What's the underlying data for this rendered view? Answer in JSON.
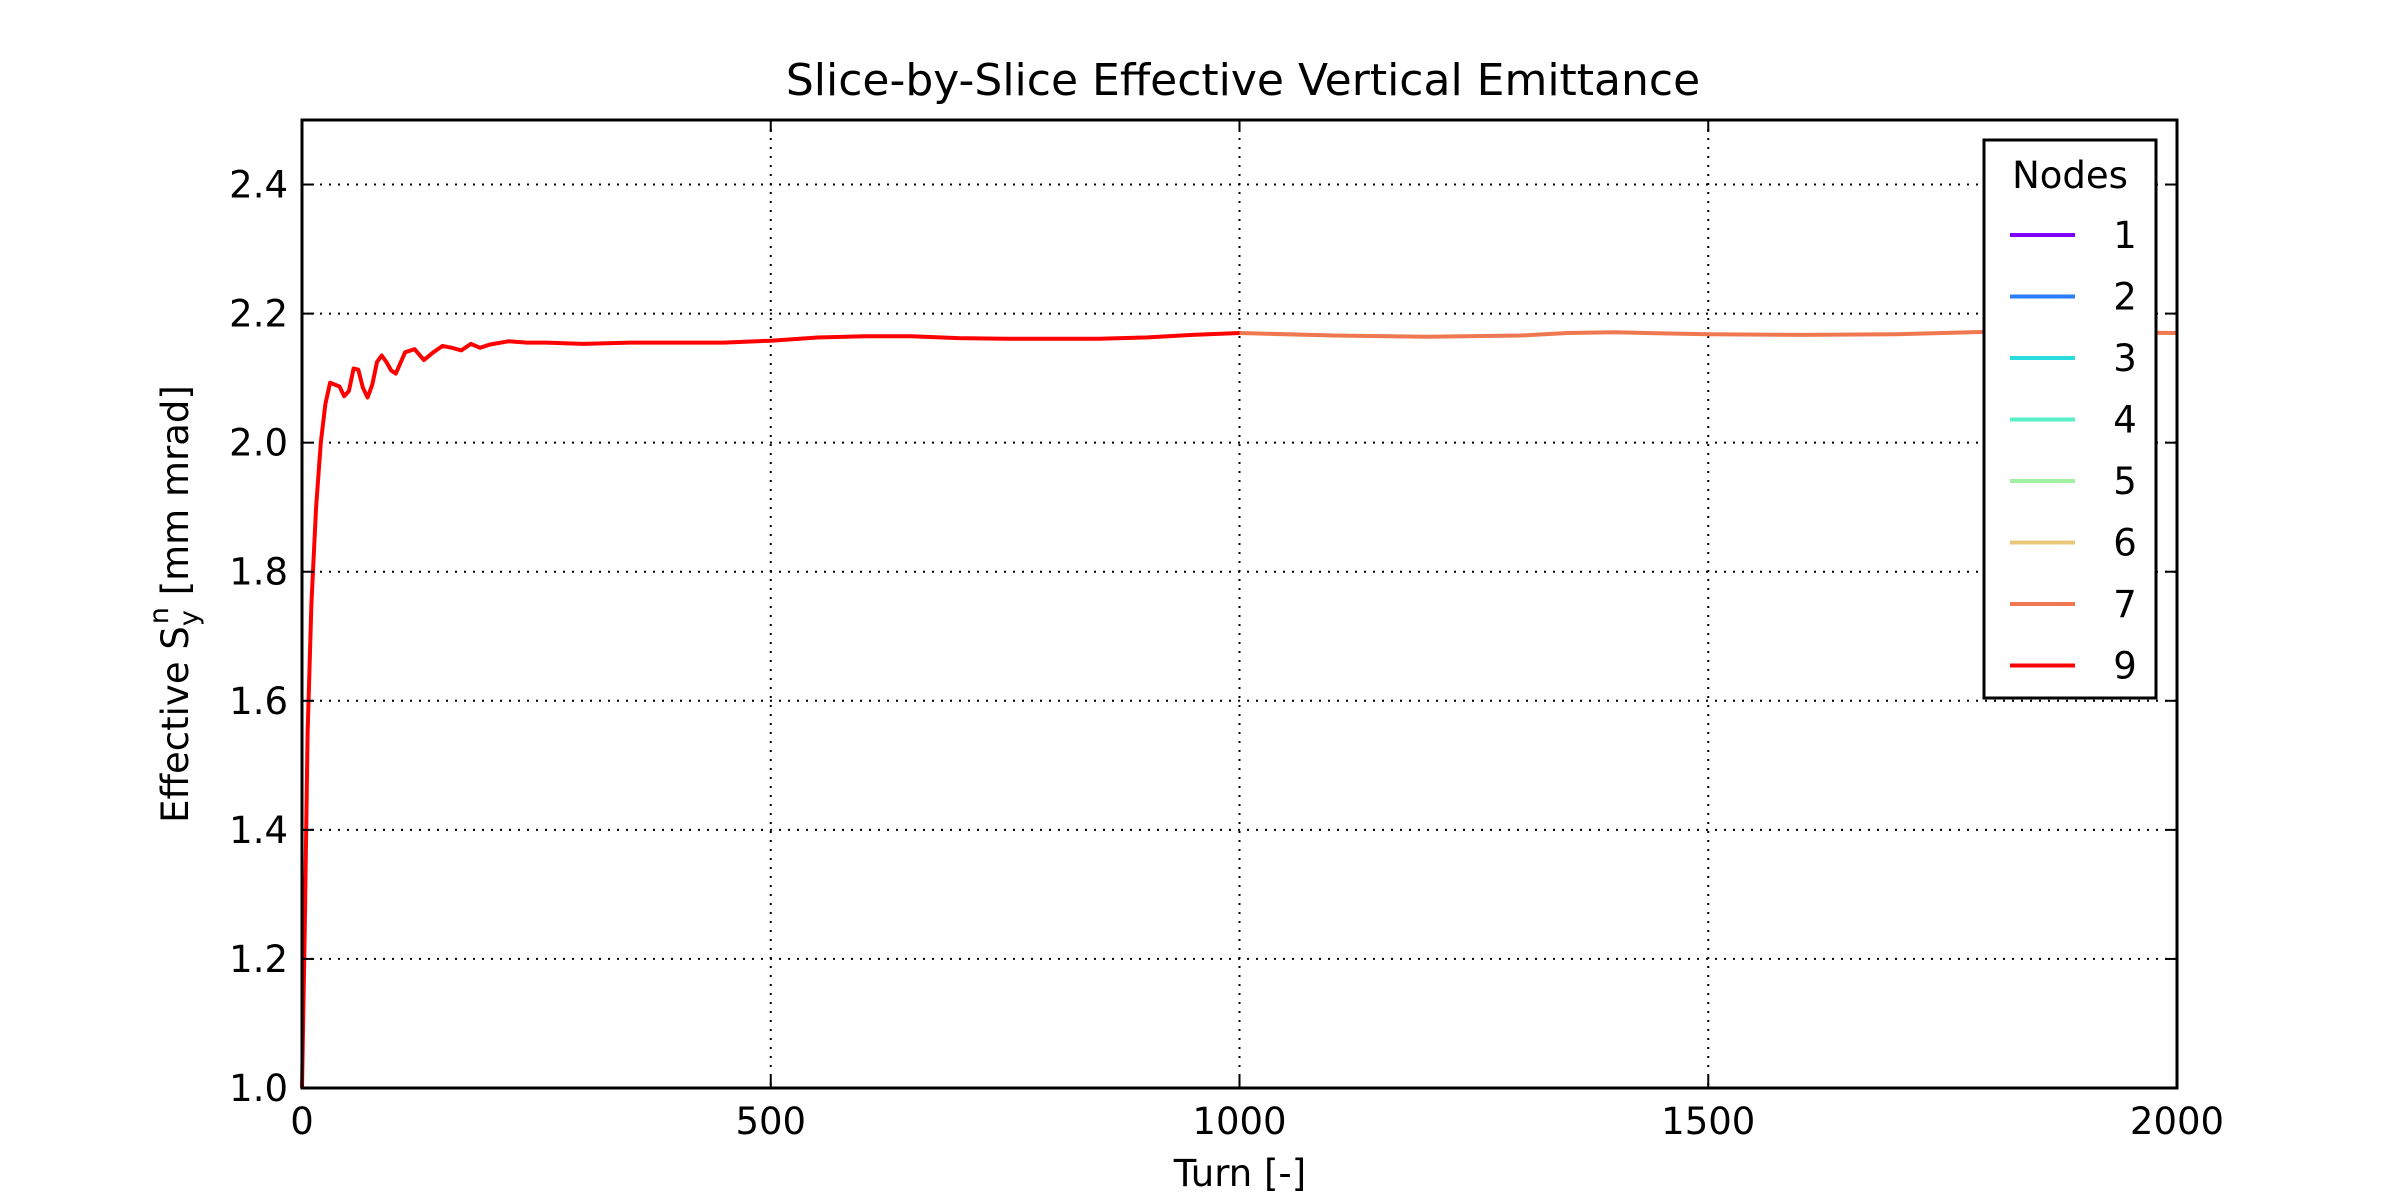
{
  "chart_data": {
    "type": "line",
    "title": "Slice-by-Slice Effective Vertical Emittance",
    "xlabel": "Turn [-]",
    "ylabel": {
      "prefix": "Effective S",
      "subscript": "y",
      "superscript": "n",
      "suffix": "  [mm mrad]"
    },
    "xlim": [
      0,
      2000
    ],
    "ylim": [
      1.0,
      2.5
    ],
    "xticks": [
      0,
      500,
      1000,
      1500,
      2000
    ],
    "yticks": [
      1.0,
      1.2,
      1.4,
      1.6,
      1.8,
      2.0,
      2.2,
      2.4
    ],
    "xtick_labels": [
      "0",
      "500",
      "1000",
      "1500",
      "2000"
    ],
    "ytick_labels": [
      "1.0",
      "1.2",
      "1.4",
      "1.6",
      "1.8",
      "2.0",
      "2.2",
      "2.4"
    ],
    "grid": true,
    "legend": {
      "title": "Nodes",
      "placement": "top-right"
    },
    "series": [
      {
        "name": "1",
        "color": "#8000ff",
        "x": [],
        "y": []
      },
      {
        "name": "2",
        "color": "#2c7ef8",
        "x": [],
        "y": []
      },
      {
        "name": "3",
        "color": "#2adddd",
        "x": [],
        "y": []
      },
      {
        "name": "4",
        "color": "#57f0c9",
        "x": [],
        "y": []
      },
      {
        "name": "5",
        "color": "#a0f0a0",
        "x": [],
        "y": []
      },
      {
        "name": "6",
        "color": "#e8c878",
        "x": [],
        "y": []
      },
      {
        "name": "7",
        "color": "#f07850",
        "x": [
          1000,
          1100,
          1200,
          1300,
          1350,
          1400,
          1500,
          1600,
          1700,
          1800,
          1900,
          2000
        ],
        "y": [
          2.17,
          2.166,
          2.164,
          2.166,
          2.17,
          2.171,
          2.168,
          2.167,
          2.168,
          2.172,
          2.171,
          2.17
        ]
      },
      {
        "name": "9",
        "color": "#ff0000",
        "x": [
          0,
          3,
          6,
          10,
          15,
          20,
          25,
          30,
          35,
          40,
          45,
          50,
          55,
          60,
          65,
          70,
          75,
          80,
          85,
          90,
          95,
          100,
          110,
          120,
          130,
          140,
          150,
          160,
          170,
          180,
          190,
          200,
          220,
          240,
          260,
          300,
          350,
          400,
          450,
          500,
          550,
          600,
          650,
          700,
          750,
          800,
          850,
          900,
          950,
          1000
        ],
        "y": [
          1.0,
          1.25,
          1.55,
          1.75,
          1.9,
          2.0,
          2.06,
          2.093,
          2.09,
          2.087,
          2.072,
          2.08,
          2.115,
          2.113,
          2.085,
          2.07,
          2.09,
          2.125,
          2.135,
          2.125,
          2.112,
          2.107,
          2.14,
          2.145,
          2.128,
          2.14,
          2.15,
          2.147,
          2.143,
          2.153,
          2.147,
          2.152,
          2.157,
          2.155,
          2.155,
          2.153,
          2.155,
          2.155,
          2.155,
          2.158,
          2.163,
          2.165,
          2.165,
          2.162,
          2.161,
          2.161,
          2.161,
          2.163,
          2.167,
          2.17
        ]
      }
    ]
  }
}
